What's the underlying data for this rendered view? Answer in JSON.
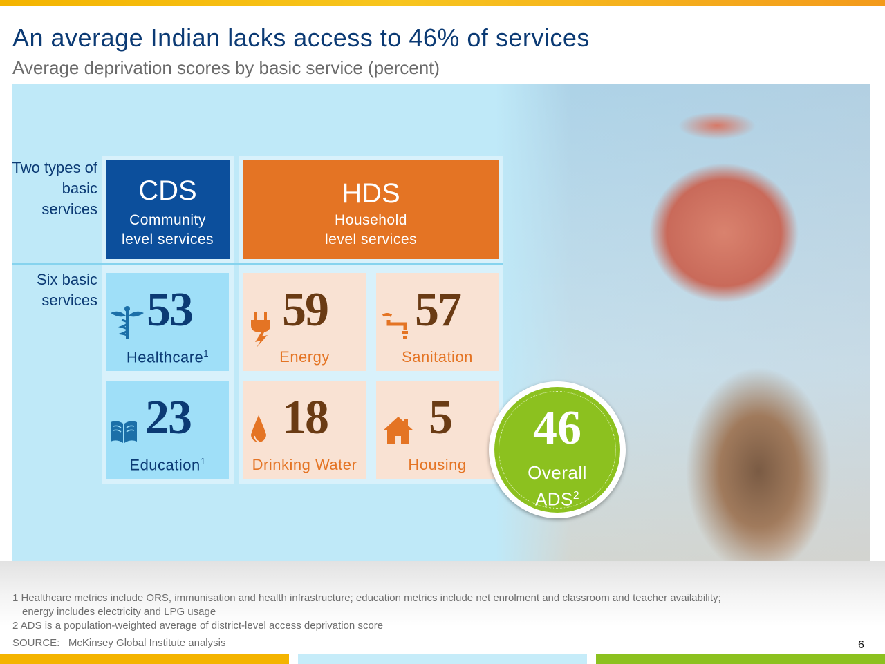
{
  "header": {
    "title": "An average Indian lacks access to 46% of services",
    "subtitle": "Average deprivation scores by basic service (percent)"
  },
  "row_labels": {
    "types": "Two types of basic services",
    "services": "Six basic services"
  },
  "service_types": {
    "cds": {
      "abbr": "CDS",
      "line1": "Community",
      "line2": "level services",
      "color": "#0c4f9c"
    },
    "hds": {
      "abbr": "HDS",
      "line1": "Household",
      "line2": "level services",
      "color": "#e47424"
    }
  },
  "services": [
    {
      "name": "Healthcare",
      "footnote": "1",
      "score": "53",
      "icon": "caduceus-icon",
      "type": "CDS"
    },
    {
      "name": "Energy",
      "score": "59",
      "icon": "plug-icon",
      "type": "HDS"
    },
    {
      "name": "Sanitation",
      "score": "57",
      "icon": "pipe-icon",
      "type": "HDS"
    },
    {
      "name": "Education",
      "footnote": "1",
      "score": "23",
      "icon": "book-icon",
      "type": "CDS"
    },
    {
      "name": "Drinking Water",
      "score": "18",
      "icon": "water-drop-icon",
      "type": "HDS"
    },
    {
      "name": "Housing",
      "score": "5",
      "icon": "house-icon",
      "type": "HDS"
    }
  ],
  "overall": {
    "score": "46",
    "label": "Overall",
    "sublabel": "ADS",
    "footnote": "2",
    "color": "#8cc11f"
  },
  "footnotes": {
    "note1_line1": "1 Healthcare metrics include ORS, immunisation and health infrastructure; education metrics include net enrolment and classroom and teacher availability;",
    "note1_line2": "energy includes electricity and LPG usage",
    "note2": "2  ADS is a population-weighted average of district-level access deprivation score",
    "source_label": "SOURCE:",
    "source": "McKinsey Global Institute analysis"
  },
  "page_number": "6"
}
